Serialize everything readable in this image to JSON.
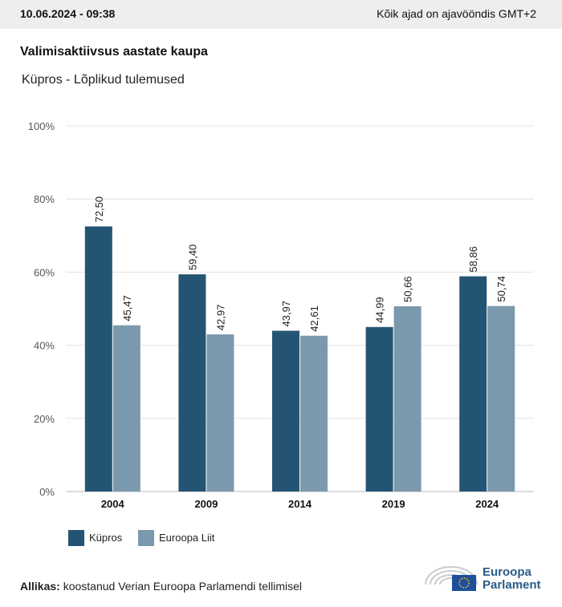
{
  "header": {
    "datetime": "10.06.2024 - 09:38",
    "timezone_note": "Kõik ajad on ajavööndis GMT+2"
  },
  "title": "Valimisaktiivsus aastate kaupa",
  "subtitle": "Küpros - Lõplikud tulemused",
  "legend": {
    "series1": "Küpros",
    "series2": "Euroopa Liit"
  },
  "source": {
    "label": "Allikas:",
    "text": "koostanud Verian Euroopa Parlamendi tellimisel"
  },
  "logo": {
    "line1": "Euroopa",
    "line2": "Parlament"
  },
  "colors": {
    "series1": "#245473",
    "series2": "#7b99ad",
    "grid": "#e3e3e3",
    "axis": "#bbbbbb"
  },
  "chart_data": {
    "type": "bar",
    "categories": [
      "2004",
      "2009",
      "2014",
      "2019",
      "2024"
    ],
    "series": [
      {
        "name": "Küpros",
        "values": [
          72.5,
          59.4,
          43.97,
          44.99,
          58.86
        ],
        "labels": [
          "72,50",
          "59,40",
          "43,97",
          "44,99",
          "58,86"
        ]
      },
      {
        "name": "Euroopa Liit",
        "values": [
          45.47,
          42.97,
          42.61,
          50.66,
          50.74
        ],
        "labels": [
          "45,47",
          "42,97",
          "42,61",
          "50,66",
          "50,74"
        ]
      }
    ],
    "ylim": [
      0,
      100
    ],
    "yticks": [
      0,
      20,
      40,
      60,
      80,
      100
    ],
    "ytick_labels": [
      "0%",
      "20%",
      "40%",
      "60%",
      "80%",
      "100%"
    ],
    "grid": true,
    "legend_position": "bottom-left"
  }
}
